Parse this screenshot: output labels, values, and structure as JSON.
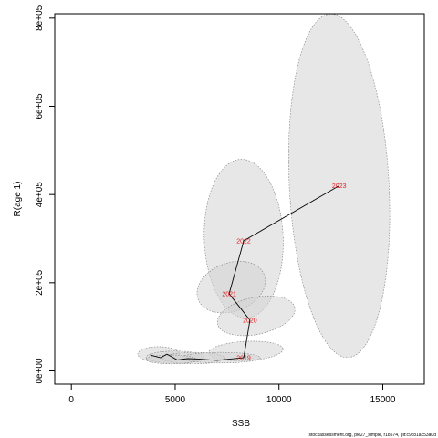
{
  "chart_data": {
    "type": "scatter",
    "title": "",
    "xlabel": "SSB",
    "ylabel": "R(age 1)",
    "xlim": [
      -800,
      17000
    ],
    "ylim": [
      -30000,
      810000
    ],
    "x_ticks": [
      0,
      5000,
      10000,
      15000
    ],
    "x_tick_labels": [
      "0",
      "5000",
      "10000",
      "15000"
    ],
    "y_ticks": [
      0,
      200000,
      400000,
      600000,
      800000
    ],
    "y_tick_labels": [
      "0e+00",
      "2e+05",
      "4e+05",
      "6e+05",
      "8e+05"
    ],
    "grid": false,
    "colors": {
      "line": "#000000",
      "year_label": "#e31a1c",
      "ellipse_fill": "#d3d3d3",
      "ellipse_stroke": "#7f7f7f"
    },
    "series": [
      {
        "points": [
          {
            "year": "",
            "x": 3800,
            "y": 36000
          },
          {
            "year": "",
            "x": 4300,
            "y": 30000
          },
          {
            "year": "",
            "x": 4600,
            "y": 38000
          },
          {
            "year": "",
            "x": 5100,
            "y": 25000
          },
          {
            "year": "",
            "x": 5600,
            "y": 28000
          },
          {
            "year": "",
            "x": 6100,
            "y": 27000
          },
          {
            "year": "",
            "x": 7000,
            "y": 24000
          },
          {
            "year": "2019",
            "x": 8300,
            "y": 30000
          },
          {
            "year": "2020",
            "x": 8600,
            "y": 115000
          },
          {
            "year": "2021",
            "x": 7600,
            "y": 175000
          },
          {
            "year": "2022",
            "x": 8300,
            "y": 295000
          },
          {
            "year": "2023",
            "x": 12900,
            "y": 420000
          }
        ],
        "visible_year_labels": [
          {
            "text": "2023",
            "x": 12900,
            "y": 420000
          },
          {
            "text": "2022",
            "x": 8300,
            "y": 295000
          },
          {
            "text": "2021",
            "x": 7600,
            "y": 175000
          },
          {
            "text": "2020",
            "x": 8600,
            "y": 115000
          },
          {
            "text": "2019",
            "x": 8300,
            "y": 30000
          }
        ]
      }
    ],
    "ellipses": [
      {
        "cx": 12900,
        "cy": 420000,
        "rx": 2400,
        "ry": 390000,
        "tilt_deg": -3
      },
      {
        "cx": 8300,
        "cy": 300000,
        "rx": 1900,
        "ry": 180000,
        "tilt_deg": -2
      },
      {
        "cx": 7700,
        "cy": 190000,
        "rx": 1700,
        "ry": 55000,
        "tilt_deg": -20
      },
      {
        "cx": 8900,
        "cy": 125000,
        "rx": 1900,
        "ry": 42000,
        "tilt_deg": -12
      },
      {
        "cx": 8400,
        "cy": 45000,
        "rx": 1800,
        "ry": 22000,
        "tilt_deg": -3
      },
      {
        "cx": 4200,
        "cy": 38000,
        "rx": 1000,
        "ry": 17000,
        "tilt_deg": 0
      },
      {
        "cx": 5000,
        "cy": 31000,
        "rx": 1400,
        "ry": 14000,
        "tilt_deg": 0
      },
      {
        "cx": 5900,
        "cy": 29000,
        "rx": 1500,
        "ry": 13000,
        "tilt_deg": 0
      },
      {
        "cx": 7200,
        "cy": 30000,
        "rx": 1900,
        "ry": 12000,
        "tilt_deg": 0
      },
      {
        "cx": 4800,
        "cy": 26000,
        "rx": 1200,
        "ry": 10000,
        "tilt_deg": 0
      }
    ]
  },
  "footer": {
    "note": "stockassessment.org, ple27_simple, r18574, git:c9c81ac53a0d"
  }
}
